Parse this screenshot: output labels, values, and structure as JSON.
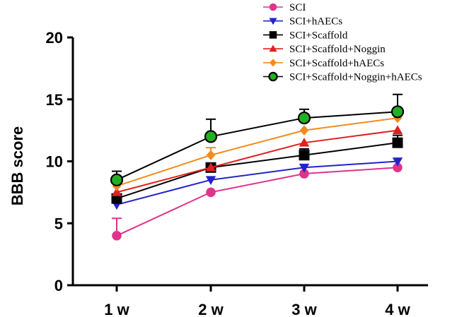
{
  "chart_data": {
    "type": "line",
    "categories": [
      "1 w",
      "2 w",
      "3 w",
      "4 w"
    ],
    "ylabel": "BBB score",
    "xlabel": "",
    "ylim": [
      0,
      20
    ],
    "yticks": [
      0,
      5,
      10,
      15,
      20
    ],
    "legend_position": "top-right",
    "series": [
      {
        "name": "SCI",
        "color": "#e0338a",
        "marker": "circle",
        "values": [
          4.0,
          7.5,
          9.0,
          9.5
        ],
        "errors": [
          1.4,
          0,
          0,
          0
        ]
      },
      {
        "name": "SCI+hAECs",
        "color": "#2323c8",
        "marker": "triangle-down",
        "values": [
          6.5,
          8.5,
          9.5,
          10.0
        ],
        "errors": [
          0,
          0,
          0,
          0
        ]
      },
      {
        "name": "SCI+Scaffold",
        "color": "#000000",
        "marker": "square",
        "values": [
          7.0,
          9.5,
          10.5,
          11.5
        ],
        "errors": [
          0,
          0,
          0.5,
          0.6
        ]
      },
      {
        "name": "SCI+Scaffold+Noggin",
        "color": "#e02020",
        "marker": "triangle-up",
        "values": [
          7.5,
          9.5,
          11.5,
          12.5
        ],
        "errors": [
          0,
          0,
          0,
          0
        ]
      },
      {
        "name": "SCI+Scaffold+hAECs",
        "color": "#f08c1e",
        "marker": "diamond",
        "values": [
          8.0,
          10.5,
          12.5,
          13.5
        ],
        "errors": [
          0,
          0.6,
          0,
          0
        ]
      },
      {
        "name": "SCI+Scaffold+Noggin+hAECs",
        "color": "#000000",
        "fill": "#22b022",
        "marker": "circle-outlined",
        "values": [
          8.5,
          12.0,
          13.5,
          14.0
        ],
        "errors": [
          0.7,
          1.4,
          0.7,
          1.4
        ]
      }
    ]
  }
}
